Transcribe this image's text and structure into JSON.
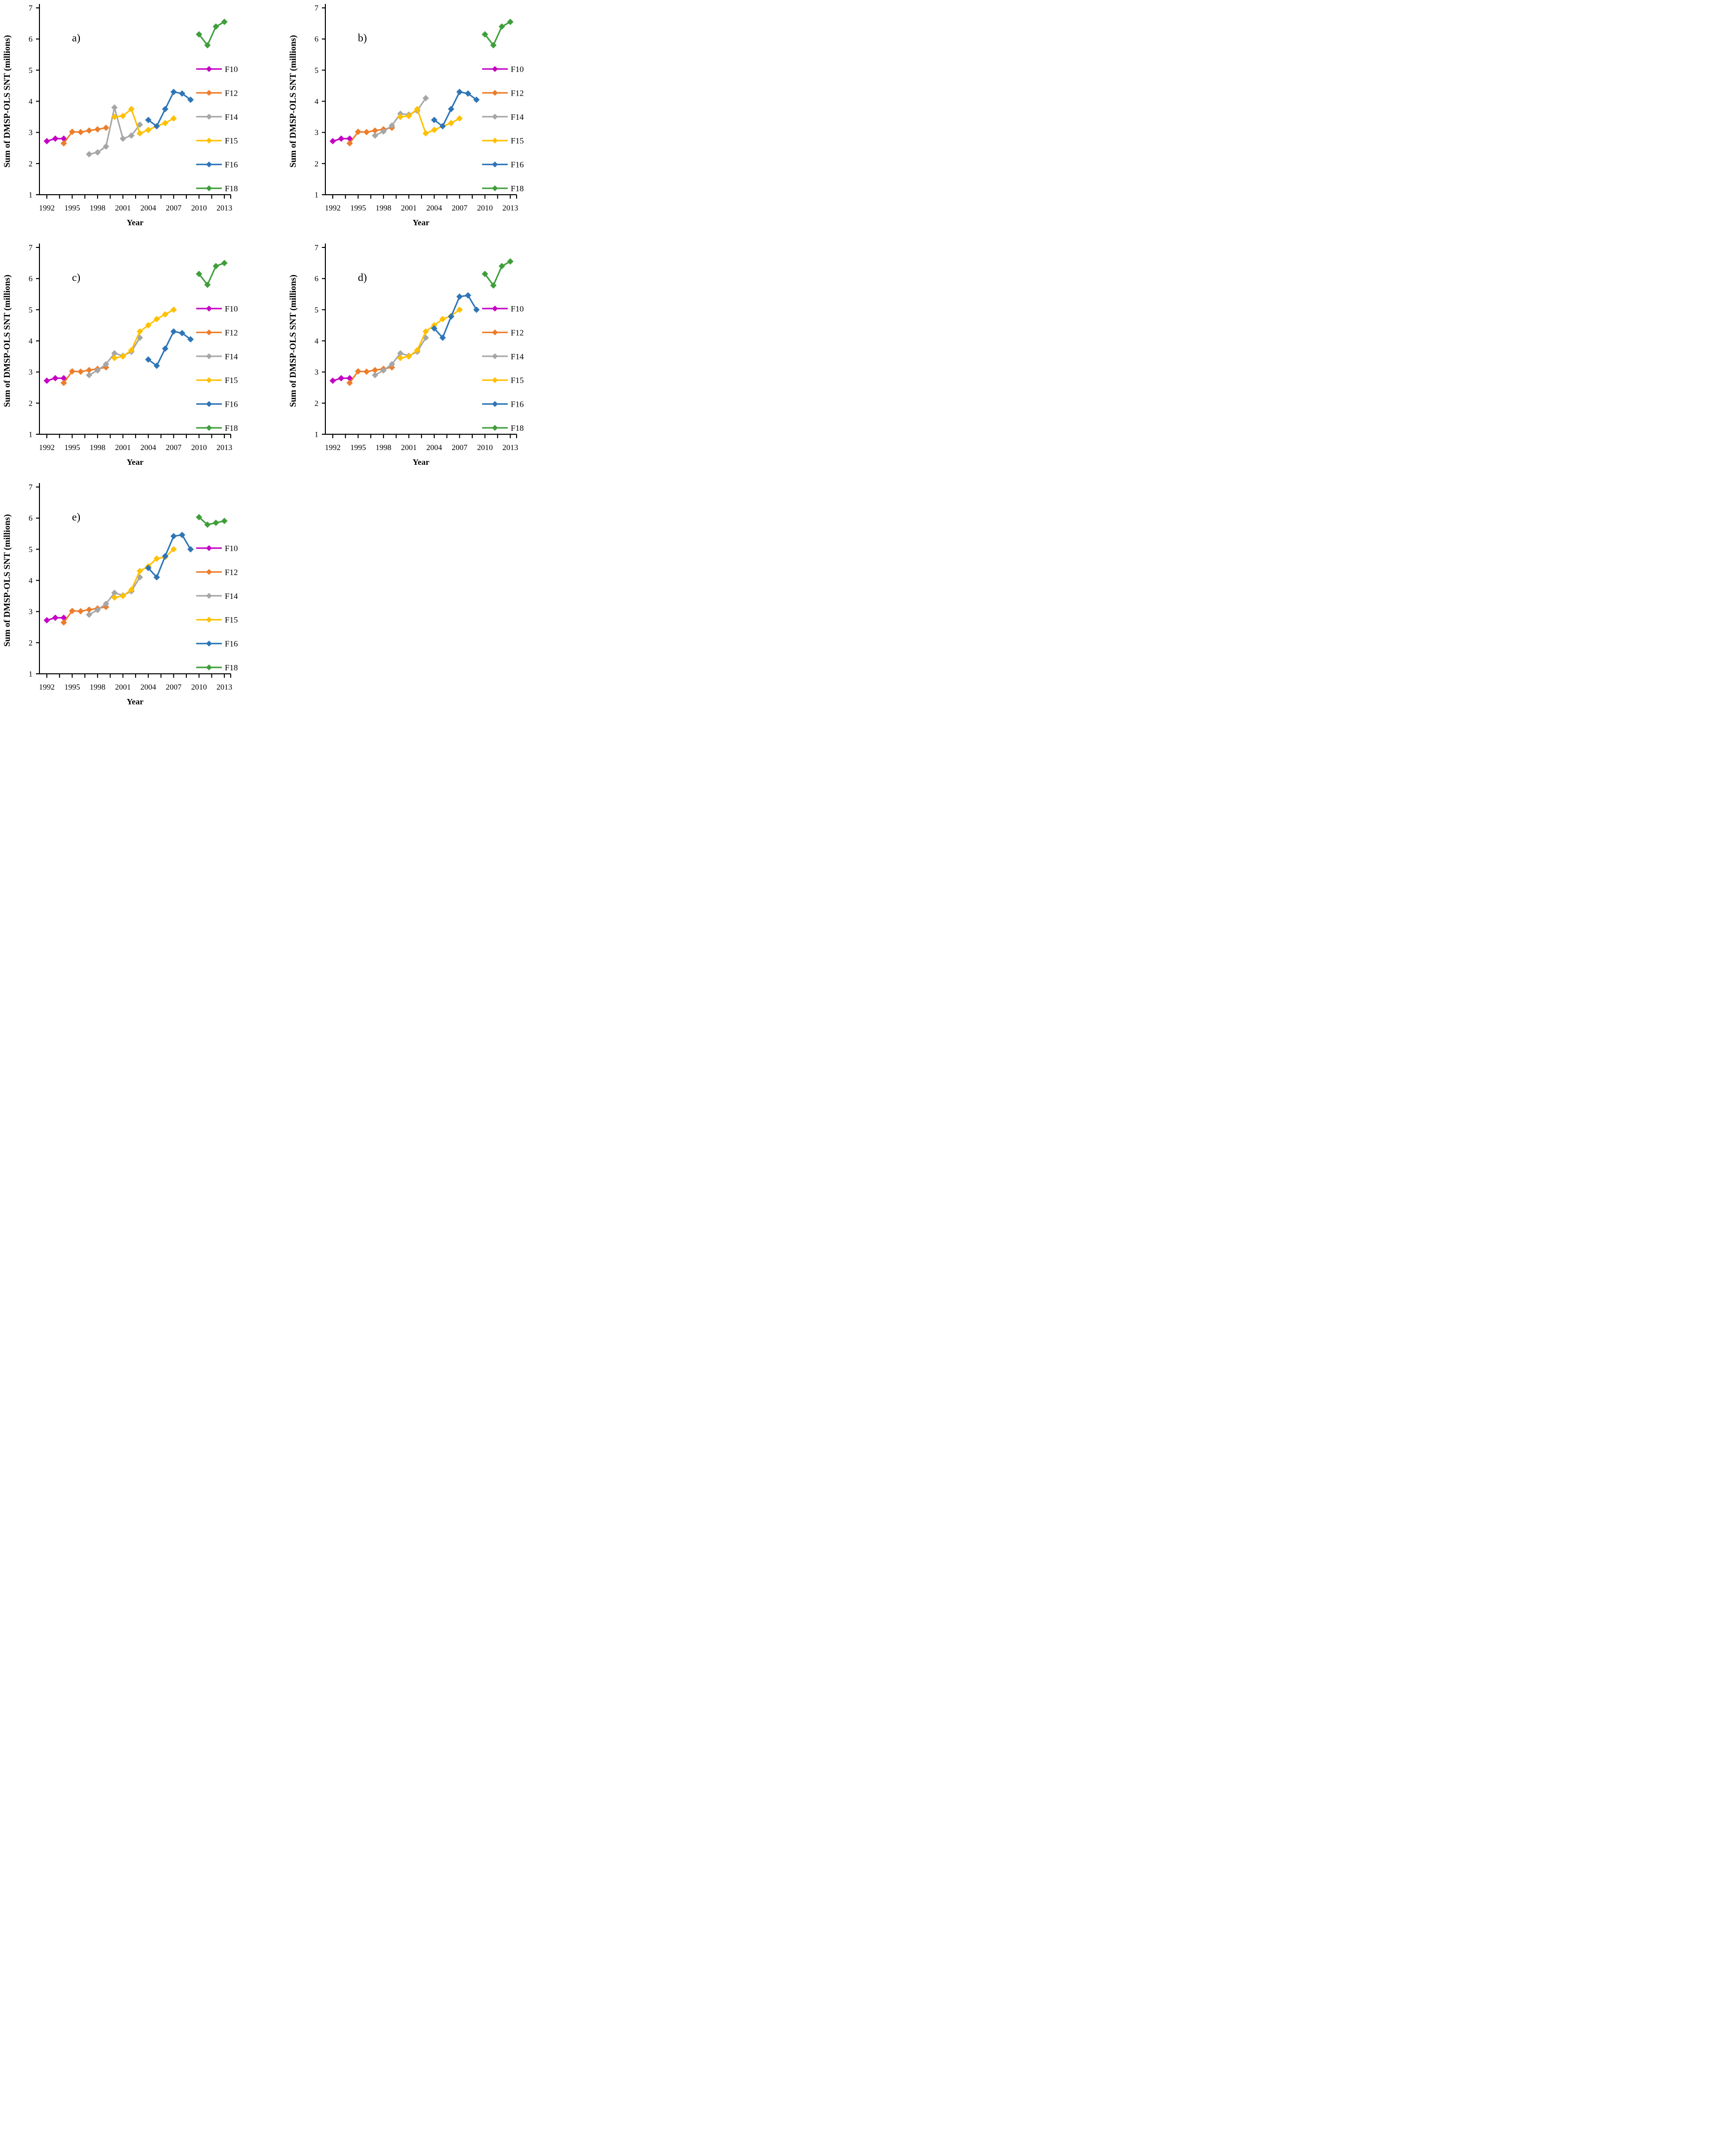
{
  "page": {
    "background": "#ffffff"
  },
  "y_axis": {
    "label": "Sum of DMSP-OLS SNT (millions)",
    "ticks": [
      1,
      2,
      3,
      4,
      5,
      6,
      7
    ],
    "range": [
      1,
      7
    ]
  },
  "x_axis": {
    "label": "Year",
    "tick_labels": [
      1992,
      1995,
      1998,
      2001,
      2004,
      2007,
      2010,
      2013
    ],
    "minor_tick_step_years": 1.5,
    "range": [
      1991.1,
      2013.8
    ]
  },
  "legend": {
    "items": [
      "F10",
      "F12",
      "F14",
      "F15",
      "F16",
      "F18"
    ],
    "position": "right"
  },
  "colors": {
    "F10": "#C400C4",
    "F12": "#ED7D2B",
    "F14": "#A6A6A6",
    "F15": "#FFC000",
    "F16": "#2E75B6",
    "F18": "#3F9E3A"
  },
  "chart_data": [
    {
      "type": "line",
      "panel_label": "a)",
      "xlabel": "Year",
      "ylabel": "Sum of DMSP-OLS SNT (millions)",
      "ylim": [
        1,
        7
      ],
      "grid": false,
      "legend_entries": [
        "F10",
        "F12",
        "F14",
        "F15",
        "F16",
        "F18"
      ],
      "series": [
        {
          "name": "F10",
          "x": [
            1992,
            1993,
            1994
          ],
          "values": [
            2.72,
            2.8,
            2.8
          ]
        },
        {
          "name": "F12",
          "x": [
            1994,
            1995,
            1996,
            1997,
            1998,
            1999
          ],
          "values": [
            2.65,
            3.02,
            3.01,
            3.06,
            3.1,
            3.15
          ]
        },
        {
          "name": "F14",
          "x": [
            1997,
            1998,
            1999,
            2000,
            2001,
            2002,
            2003
          ],
          "values": [
            2.3,
            2.36,
            2.55,
            3.8,
            2.8,
            2.9,
            3.25
          ]
        },
        {
          "name": "F15",
          "x": [
            2000,
            2001,
            2002,
            2003,
            2004,
            2005,
            2006,
            2007
          ],
          "values": [
            3.5,
            3.53,
            3.75,
            2.97,
            3.08,
            3.2,
            3.3,
            3.45
          ]
        },
        {
          "name": "F16",
          "x": [
            2004,
            2005,
            2006,
            2007,
            2008,
            2009
          ],
          "values": [
            3.4,
            3.2,
            3.75,
            4.3,
            4.25,
            4.05
          ]
        },
        {
          "name": "F18",
          "x": [
            2010,
            2011,
            2012,
            2013
          ],
          "values": [
            6.15,
            5.8,
            6.4,
            6.55
          ]
        }
      ]
    },
    {
      "type": "line",
      "panel_label": "b)",
      "xlabel": "Year",
      "ylabel": "Sum of DMSP-OLS SNT (millions)",
      "ylim": [
        1,
        7
      ],
      "grid": false,
      "legend_entries": [
        "F10",
        "F12",
        "F14",
        "F15",
        "F16",
        "F18"
      ],
      "series": [
        {
          "name": "F10",
          "x": [
            1992,
            1993,
            1994
          ],
          "values": [
            2.72,
            2.8,
            2.8
          ]
        },
        {
          "name": "F12",
          "x": [
            1994,
            1995,
            1996,
            1997,
            1998,
            1999
          ],
          "values": [
            2.65,
            3.02,
            3.01,
            3.06,
            3.1,
            3.15
          ]
        },
        {
          "name": "F14",
          "x": [
            1997,
            1998,
            1999,
            2000,
            2001,
            2002,
            2003
          ],
          "values": [
            2.9,
            3.03,
            3.22,
            3.6,
            3.57,
            3.7,
            4.1
          ]
        },
        {
          "name": "F15",
          "x": [
            2000,
            2001,
            2002,
            2003,
            2004,
            2005,
            2006,
            2007
          ],
          "values": [
            3.5,
            3.53,
            3.75,
            2.97,
            3.08,
            3.2,
            3.3,
            3.45
          ]
        },
        {
          "name": "F16",
          "x": [
            2004,
            2005,
            2006,
            2007,
            2008,
            2009
          ],
          "values": [
            3.4,
            3.2,
            3.75,
            4.3,
            4.25,
            4.05
          ]
        },
        {
          "name": "F18",
          "x": [
            2010,
            2011,
            2012,
            2013
          ],
          "values": [
            6.15,
            5.8,
            6.4,
            6.55
          ]
        }
      ]
    },
    {
      "type": "line",
      "panel_label": "c)",
      "xlabel": "Year",
      "ylabel": "Sum of DMSP-OLS SNT (millions)",
      "ylim": [
        1,
        7
      ],
      "grid": false,
      "legend_entries": [
        "F10",
        "F12",
        "F14",
        "F15",
        "F16",
        "F18"
      ],
      "series": [
        {
          "name": "F10",
          "x": [
            1992,
            1993,
            1994
          ],
          "values": [
            2.72,
            2.8,
            2.8
          ]
        },
        {
          "name": "F12",
          "x": [
            1994,
            1995,
            1996,
            1997,
            1998,
            1999
          ],
          "values": [
            2.65,
            3.02,
            3.01,
            3.06,
            3.1,
            3.15
          ]
        },
        {
          "name": "F14",
          "x": [
            1997,
            1998,
            1999,
            2000,
            2001,
            2002,
            2003
          ],
          "values": [
            2.9,
            3.05,
            3.25,
            3.6,
            3.52,
            3.65,
            4.1
          ]
        },
        {
          "name": "F15",
          "x": [
            2000,
            2001,
            2002,
            2003,
            2004,
            2005,
            2006,
            2007
          ],
          "values": [
            3.45,
            3.5,
            3.7,
            4.3,
            4.5,
            4.7,
            4.85,
            5.0
          ]
        },
        {
          "name": "F16",
          "x": [
            2004,
            2005,
            2006,
            2007,
            2008,
            2009
          ],
          "values": [
            3.4,
            3.2,
            3.75,
            4.3,
            4.25,
            4.05
          ]
        },
        {
          "name": "F18",
          "x": [
            2010,
            2011,
            2012,
            2013
          ],
          "values": [
            6.15,
            5.8,
            6.4,
            6.5
          ]
        }
      ]
    },
    {
      "type": "line",
      "panel_label": "d)",
      "xlabel": "Year",
      "ylabel": "Sum of DMSP-OLS SNT (millions)",
      "ylim": [
        1,
        7
      ],
      "grid": false,
      "legend_entries": [
        "F10",
        "F12",
        "F14",
        "F15",
        "F16",
        "F18"
      ],
      "series": [
        {
          "name": "F10",
          "x": [
            1992,
            1993,
            1994
          ],
          "values": [
            2.72,
            2.8,
            2.8
          ]
        },
        {
          "name": "F12",
          "x": [
            1994,
            1995,
            1996,
            1997,
            1998,
            1999
          ],
          "values": [
            2.65,
            3.02,
            3.01,
            3.06,
            3.1,
            3.15
          ]
        },
        {
          "name": "F14",
          "x": [
            1997,
            1998,
            1999,
            2000,
            2001,
            2002,
            2003
          ],
          "values": [
            2.9,
            3.05,
            3.25,
            3.6,
            3.52,
            3.65,
            4.1
          ]
        },
        {
          "name": "F15",
          "x": [
            2000,
            2001,
            2002,
            2003,
            2004,
            2005,
            2006,
            2007
          ],
          "values": [
            3.45,
            3.5,
            3.7,
            4.3,
            4.5,
            4.7,
            4.8,
            5.0
          ]
        },
        {
          "name": "F16",
          "x": [
            2004,
            2005,
            2006,
            2007,
            2008,
            2009
          ],
          "values": [
            4.4,
            4.1,
            4.78,
            5.42,
            5.46,
            5.0
          ]
        },
        {
          "name": "F18",
          "x": [
            2010,
            2011,
            2012,
            2013
          ],
          "values": [
            6.15,
            5.78,
            6.4,
            6.55
          ]
        }
      ]
    },
    {
      "type": "line",
      "panel_label": "e)",
      "xlabel": "Year",
      "ylabel": "Sum of DMSP-OLS SNT (millions)",
      "ylim": [
        1,
        7
      ],
      "grid": false,
      "legend_entries": [
        "F10",
        "F12",
        "F14",
        "F15",
        "F16",
        "F18"
      ],
      "series": [
        {
          "name": "F10",
          "x": [
            1992,
            1993,
            1994
          ],
          "values": [
            2.72,
            2.8,
            2.8
          ]
        },
        {
          "name": "F12",
          "x": [
            1994,
            1995,
            1996,
            1997,
            1998,
            1999
          ],
          "values": [
            2.65,
            3.02,
            3.01,
            3.06,
            3.1,
            3.15
          ]
        },
        {
          "name": "F14",
          "x": [
            1997,
            1998,
            1999,
            2000,
            2001,
            2002,
            2003
          ],
          "values": [
            2.9,
            3.05,
            3.25,
            3.6,
            3.52,
            3.65,
            4.1
          ]
        },
        {
          "name": "F15",
          "x": [
            2000,
            2001,
            2002,
            2003,
            2004,
            2005,
            2006,
            2007
          ],
          "values": [
            3.45,
            3.5,
            3.7,
            4.3,
            4.45,
            4.7,
            4.75,
            5.0
          ]
        },
        {
          "name": "F16",
          "x": [
            2004,
            2005,
            2006,
            2007,
            2008,
            2009
          ],
          "values": [
            4.4,
            4.1,
            4.78,
            5.42,
            5.46,
            5.0
          ]
        },
        {
          "name": "F18",
          "x": [
            2010,
            2011,
            2012,
            2013
          ],
          "values": [
            6.03,
            5.79,
            5.85,
            5.91
          ]
        }
      ]
    }
  ]
}
